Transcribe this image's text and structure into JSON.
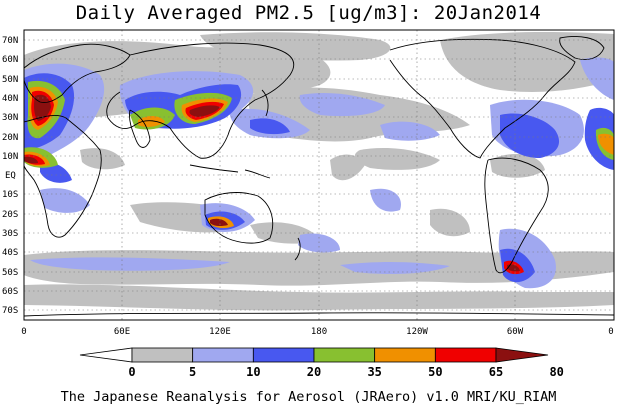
{
  "title": "Daily Averaged PM2.5 [ug/m3]: 20Jan2014",
  "credit": "The Japanese Reanalysis for Aerosol (JRAero) v1.0 MRI/KU_RIAM",
  "map": {
    "projection": "equirectangular",
    "lon_range": [
      0,
      360
    ],
    "lat_range": [
      -75,
      75
    ],
    "lat_ticks": [
      "70N",
      "60N",
      "50N",
      "40N",
      "30N",
      "20N",
      "10N",
      "EQ",
      "10S",
      "20S",
      "30S",
      "40S",
      "50S",
      "60S",
      "70S"
    ],
    "lon_ticks": [
      "0",
      "60E",
      "120E",
      "180",
      "120W",
      "60W",
      "0"
    ],
    "grid": "dotted"
  },
  "colorbar": {
    "labels": [
      "0",
      "5",
      "10",
      "20",
      "35",
      "50",
      "65",
      "80"
    ],
    "colors": [
      "#ffffff",
      "#c0c0c0",
      "#a0a8f0",
      "#4858f0",
      "#88c030",
      "#f09000",
      "#f00000",
      "#8b1010"
    ],
    "extends": "both"
  }
}
